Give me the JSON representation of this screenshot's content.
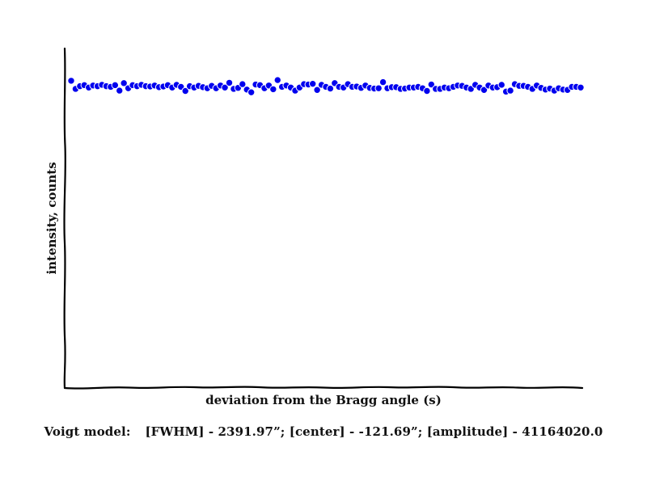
{
  "chart_data": {
    "type": "scatter",
    "title": "",
    "xlabel": "deviation from the Bragg angle (s)",
    "ylabel": "intensity, counts",
    "grid": false,
    "legend": "none",
    "marker_color": "#0000ee",
    "axis_color": "#000000",
    "ylim": [
      0,
      1
    ],
    "values": [
      0.905,
      0.881,
      0.889,
      0.892,
      0.885,
      0.891,
      0.889,
      0.893,
      0.889,
      0.887,
      0.892,
      0.876,
      0.898,
      0.883,
      0.892,
      0.889,
      0.893,
      0.889,
      0.888,
      0.891,
      0.886,
      0.888,
      0.892,
      0.885,
      0.893,
      0.887,
      0.875,
      0.889,
      0.885,
      0.89,
      0.886,
      0.883,
      0.89,
      0.883,
      0.891,
      0.885,
      0.899,
      0.881,
      0.884,
      0.895,
      0.879,
      0.871,
      0.894,
      0.892,
      0.883,
      0.891,
      0.88,
      0.907,
      0.887,
      0.891,
      0.885,
      0.876,
      0.885,
      0.895,
      0.894,
      0.896,
      0.878,
      0.893,
      0.887,
      0.882,
      0.898,
      0.887,
      0.885,
      0.895,
      0.887,
      0.888,
      0.884,
      0.891,
      0.884,
      0.882,
      0.883,
      0.901,
      0.883,
      0.886,
      0.886,
      0.881,
      0.882,
      0.885,
      0.885,
      0.887,
      0.883,
      0.875,
      0.894,
      0.881,
      0.881,
      0.885,
      0.883,
      0.887,
      0.891,
      0.89,
      0.885,
      0.881,
      0.893,
      0.885,
      0.878,
      0.891,
      0.885,
      0.886,
      0.893,
      0.873,
      0.876,
      0.895,
      0.89,
      0.89,
      0.887,
      0.881,
      0.891,
      0.884,
      0.879,
      0.882,
      0.876,
      0.883,
      0.879,
      0.878,
      0.887,
      0.887,
      0.885
    ]
  },
  "caption": {
    "model": "Voigt model:",
    "params": "[FWHM] - 2391.97”; [center] - -121.69”; [amplitude] - 41164020.0"
  }
}
